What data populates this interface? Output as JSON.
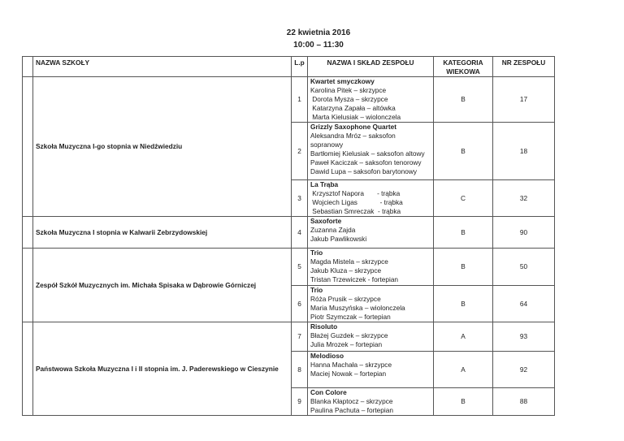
{
  "header": {
    "date": "22    kwietnia 2016",
    "time": "10:00 – 11:30"
  },
  "columns": {
    "school": "NAZWA SZKOŁY",
    "lp": "L.p",
    "ensemble": "NAZWA I SKŁAD ZESPOŁU",
    "category_1": "KATEGORIA",
    "category_2": "WIEKOWA",
    "number": "NR ZESPOŁU"
  },
  "schools": [
    "Szkoła Muzyczna I-go stopnia w Niedźwiedziu",
    "Szkoła Muzyczna I stopnia w Kalwarii Zebrzydowskiej",
    "Zespół Szkół Muzycznych im. Michała Spisaka w Dąbrowie Górniczej",
    "Państwowa Szkoła Muzyczna I i II stopnia im. J. Paderewskiego w Cieszynie"
  ],
  "rows": [
    {
      "lp": "1",
      "name": "Kwartet smyczkowy",
      "members": [
        "Karolina Pitek – skrzypce",
        " Dorota Mysza – skrzypce",
        " Katarzyna Zapała – altówka",
        " Marta Kielusiak – wiolonczela"
      ],
      "category": "B",
      "number": "17"
    },
    {
      "lp": "2",
      "name": "Grizzly Saxophone Quartet",
      "members": [
        "Aleksandra Mróz – saksofon",
        "sopranowy",
        "Bartłomiej Kielusiak – saksofon altowy",
        "Paweł Kaciczak – saksofon tenorowy",
        "Dawid Lupa – saksofon barytonowy"
      ],
      "category": "B",
      "number": "18"
    },
    {
      "lp": "3",
      "name": "La Trąba",
      "members": [
        " Krzysztof Napora       - trąbka",
        " Wojciech Ligas            - trąbka",
        " Sebastian Smreczak  - trąbka"
      ],
      "category": "C",
      "number": "32"
    },
    {
      "lp": "4",
      "name": "Saxoforte",
      "members": [
        "Zuzanna Zajda",
        "Jakub Pawlikowski"
      ],
      "category": "B",
      "number": "90"
    },
    {
      "lp": "5",
      "name": "Trio",
      "members": [
        "Magda Mistela – skrzypce",
        "Jakub Kluza – skrzypce",
        "Tristan Trzewiczek - fortepian"
      ],
      "category": "B",
      "number": "50"
    },
    {
      "lp": "6",
      "name": "Trio",
      "members": [
        "Róża Prusik – skrzypce",
        "Maria Muszyńska – wiolonczela",
        "Piotr Szymczak – fortepian"
      ],
      "category": "B",
      "number": "64"
    },
    {
      "lp": "7",
      "name": "Risoluto",
      "members": [
        "Błażej Guzdek – skrzypce",
        "Julia Mrozek – fortepian"
      ],
      "category": "A",
      "number": "93"
    },
    {
      "lp": "8",
      "name": "Melodioso",
      "members": [
        "Hanna Machała – skrzypce",
        "Maciej Nowak – fortepian"
      ],
      "category": "A",
      "number": "92"
    },
    {
      "lp": "9",
      "name": "Con Colore",
      "members": [
        "Blanka Kłaptocz – skrzypce",
        "Paulina Pachuta – fortepian"
      ],
      "category": "B",
      "number": "88"
    }
  ]
}
